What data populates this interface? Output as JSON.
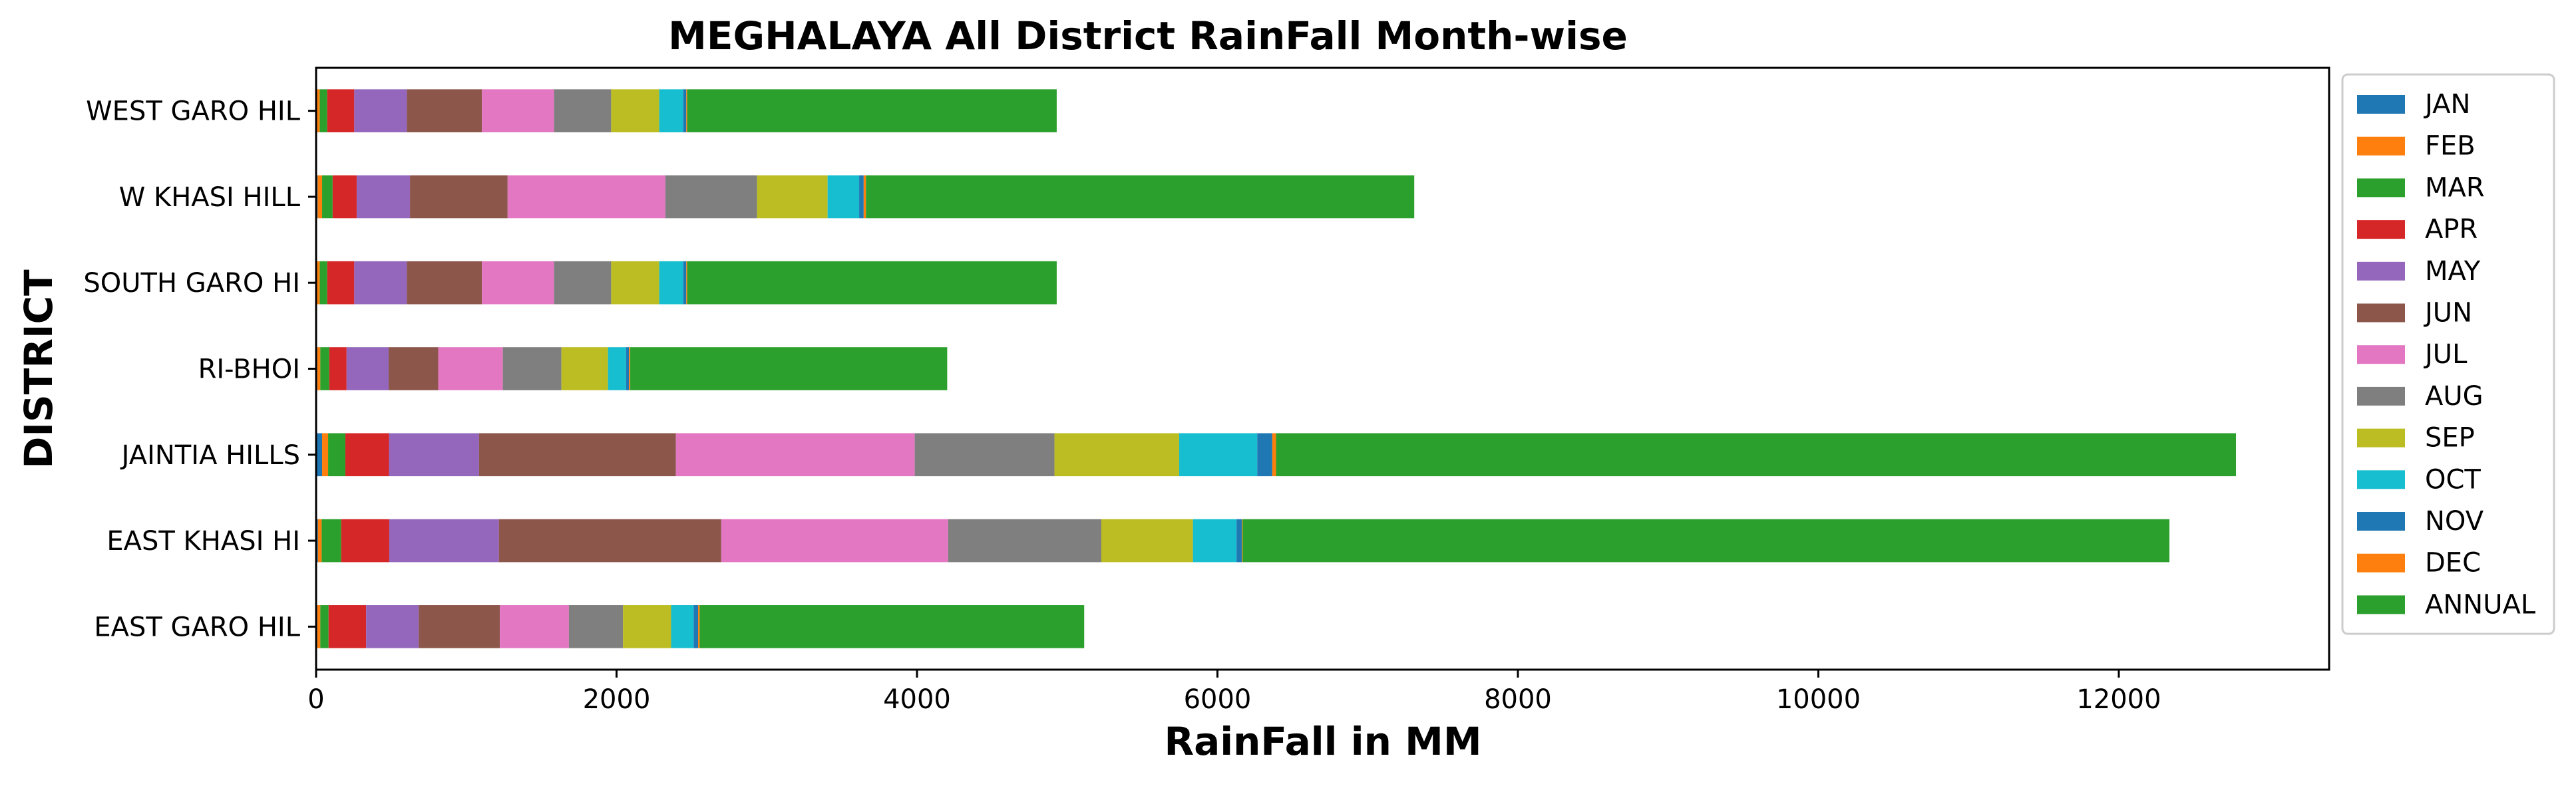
{
  "chart_data": {
    "type": "bar",
    "orientation": "horizontal",
    "stacked": true,
    "title": "MEGHALAYA All District RainFall Month-wise",
    "xlabel": "RainFall in MM",
    "ylabel": "DISTRICT",
    "xlim": [
      0,
      13400
    ],
    "xticks": [
      0,
      2000,
      4000,
      6000,
      8000,
      10000,
      12000
    ],
    "grid": false,
    "legend_position": "outside-right",
    "categories": [
      "EAST GARO HIL",
      "EAST KHASI HI",
      "JAINTIA HILLS",
      "RI-BHOI",
      "SOUTH GARO HI",
      "W KHASI HILL",
      "WEST GARO HIL"
    ],
    "series": [
      {
        "name": "JAN",
        "color": "#1f77b4",
        "values": [
          8,
          12,
          40,
          8,
          6,
          10,
          6
        ]
      },
      {
        "name": "FEB",
        "color": "#ff7f0e",
        "values": [
          20,
          25,
          40,
          20,
          18,
          30,
          18
        ]
      },
      {
        "name": "MAR",
        "color": "#2ca02c",
        "values": [
          55,
          130,
          115,
          60,
          50,
          70,
          50
        ]
      },
      {
        "name": "APR",
        "color": "#d62728",
        "values": [
          250,
          320,
          290,
          115,
          180,
          160,
          180
        ]
      },
      {
        "name": "MAY",
        "color": "#9467bd",
        "values": [
          350,
          730,
          600,
          280,
          350,
          355,
          350
        ]
      },
      {
        "name": "JUN",
        "color": "#8c564b",
        "values": [
          540,
          1480,
          1310,
          330,
          500,
          650,
          500
        ]
      },
      {
        "name": "JUL",
        "color": "#e377c2",
        "values": [
          460,
          1510,
          1590,
          430,
          480,
          1050,
          480
        ]
      },
      {
        "name": "AUG",
        "color": "#7f7f7f",
        "values": [
          360,
          1020,
          930,
          390,
          380,
          610,
          380
        ]
      },
      {
        "name": "SEP",
        "color": "#bcbd22",
        "values": [
          320,
          610,
          830,
          310,
          320,
          470,
          320
        ]
      },
      {
        "name": "OCT",
        "color": "#17becf",
        "values": [
          150,
          290,
          520,
          120,
          160,
          210,
          160
        ]
      },
      {
        "name": "NOV",
        "color": "#1f77b4",
        "values": [
          30,
          35,
          100,
          20,
          20,
          30,
          20
        ]
      },
      {
        "name": "DEC",
        "color": "#ff7f0e",
        "values": [
          10,
          5,
          25,
          8,
          6,
          15,
          6
        ]
      },
      {
        "name": "ANNUAL",
        "color": "#2ca02c",
        "values": [
          2560,
          6170,
          6390,
          2110,
          2460,
          3650,
          2460
        ]
      }
    ]
  }
}
